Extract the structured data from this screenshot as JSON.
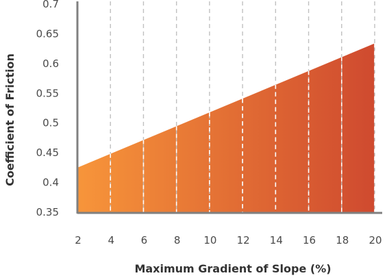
{
  "chart_data": {
    "type": "area",
    "title": "",
    "xlabel": "Maximum Gradient of Slope (%)",
    "ylabel": "Coefficient of Friction",
    "x": [
      2,
      20
    ],
    "y": [
      0.425,
      0.634
    ],
    "xticks": [
      "2",
      "4",
      "6",
      "8",
      "10",
      "12",
      "14",
      "16",
      "18",
      "20"
    ],
    "yticks": [
      "0.35",
      "0.4",
      "0.45",
      "0.5",
      "0.55",
      "0.6",
      "0.65",
      "0.7"
    ],
    "xlim": [
      2,
      20
    ],
    "ylim": [
      0.35,
      0.7
    ],
    "grid": "vertical dashed",
    "colors": {
      "fill_start": "#f7953a",
      "fill_end": "#cf4a2f",
      "axis": "#808080",
      "grid": "#c0c0c0"
    }
  }
}
